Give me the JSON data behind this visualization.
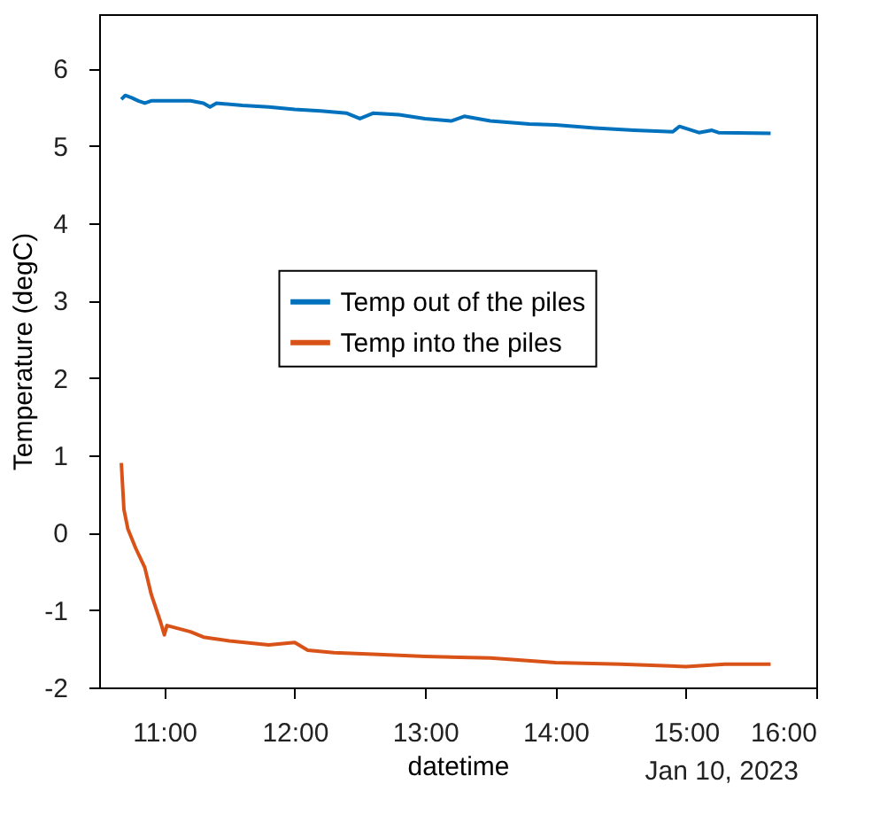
{
  "chart_data": {
    "type": "line",
    "xlabel": "datetime",
    "ylabel": "Temperature (degC)",
    "annotations": [
      "Jan 10, 2023"
    ],
    "xlim": [
      10.5,
      16
    ],
    "xticks": [
      {
        "value": 11,
        "label": "11:00"
      },
      {
        "value": 12,
        "label": "12:00"
      },
      {
        "value": 13,
        "label": "13:00"
      },
      {
        "value": 14,
        "label": "14:00"
      },
      {
        "value": 15,
        "label": "15:00"
      },
      {
        "value": 16,
        "label": "16:00"
      }
    ],
    "ylim": [
      -2,
      6.7
    ],
    "yticks": [
      -2,
      -1,
      0,
      1,
      2,
      3,
      4,
      5,
      6
    ],
    "grid": false,
    "legend": "center",
    "line_style": "solid",
    "marker": "none",
    "series": [
      {
        "name": "Temp out of the piles",
        "color": "#0072bd",
        "x": [
          10.67,
          10.7,
          10.75,
          10.8,
          10.85,
          10.9,
          11.0,
          11.2,
          11.3,
          11.35,
          11.4,
          11.6,
          11.8,
          12.0,
          12.2,
          12.4,
          12.5,
          12.6,
          12.8,
          13.0,
          13.2,
          13.3,
          13.5,
          13.8,
          14.0,
          14.3,
          14.6,
          14.9,
          14.95,
          15.1,
          15.2,
          15.25,
          15.65
        ],
        "values": [
          5.6,
          5.65,
          5.62,
          5.58,
          5.55,
          5.58,
          5.58,
          5.58,
          5.55,
          5.5,
          5.55,
          5.52,
          5.5,
          5.47,
          5.45,
          5.42,
          5.35,
          5.42,
          5.4,
          5.35,
          5.32,
          5.38,
          5.32,
          5.28,
          5.27,
          5.23,
          5.2,
          5.18,
          5.25,
          5.17,
          5.2,
          5.17,
          5.16
        ]
      },
      {
        "name": "Temp into the piles",
        "color": "#d95319",
        "x": [
          10.67,
          10.69,
          10.72,
          10.78,
          10.85,
          10.9,
          10.97,
          11.0,
          11.02,
          11.2,
          11.3,
          11.5,
          11.8,
          12.0,
          12.1,
          12.3,
          12.6,
          13.0,
          13.5,
          14.0,
          14.5,
          15.0,
          15.3,
          15.65
        ],
        "values": [
          0.9,
          0.3,
          0.05,
          -0.2,
          -0.45,
          -0.8,
          -1.15,
          -1.32,
          -1.2,
          -1.28,
          -1.35,
          -1.4,
          -1.45,
          -1.42,
          -1.52,
          -1.55,
          -1.57,
          -1.6,
          -1.62,
          -1.68,
          -1.7,
          -1.73,
          -1.7,
          -1.7
        ]
      }
    ]
  }
}
